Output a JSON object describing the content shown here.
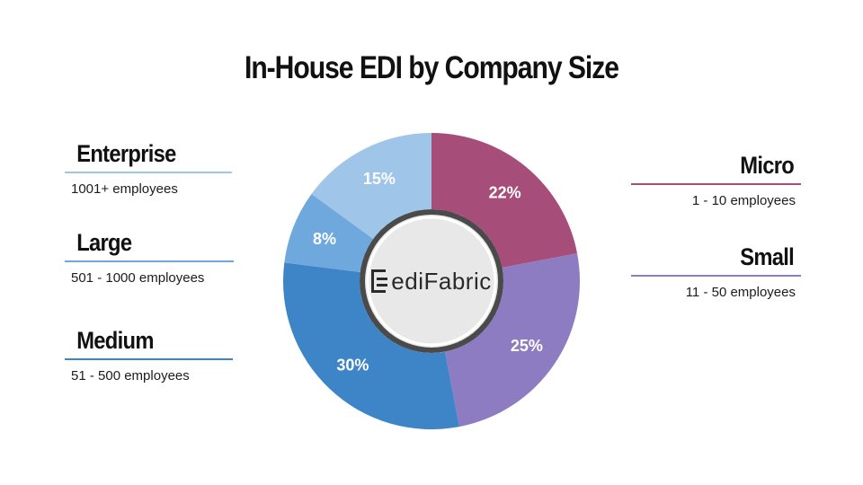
{
  "title": "In-House EDI by Company Size",
  "logo": {
    "text": "ediFabric"
  },
  "legend": {
    "enterprise": {
      "name": "Enterprise",
      "desc": "1001+ employees",
      "color": "#9fc5e8"
    },
    "large": {
      "name": "Large",
      "desc": "501 - 1000 employees",
      "color": "#6fa8dc"
    },
    "medium": {
      "name": "Medium",
      "desc": "51 - 500 employees",
      "color": "#3d85c6"
    },
    "micro": {
      "name": "Micro",
      "desc": "1 - 10 employees",
      "color": "#a64d79"
    },
    "small": {
      "name": "Small",
      "desc": "11 - 50 employees",
      "color": "#8e7cc3"
    }
  },
  "chart_data": {
    "type": "pie",
    "donut": true,
    "slices": [
      {
        "name": "Micro",
        "value": 22,
        "label": "22%",
        "color": "#a64d79"
      },
      {
        "name": "Small",
        "value": 25,
        "label": "25%",
        "color": "#8e7cc3"
      },
      {
        "name": "Medium",
        "value": 30,
        "label": "30%",
        "color": "#3d85c6"
      },
      {
        "name": "Large",
        "value": 8,
        "label": "8%",
        "color": "#6fa8dc"
      },
      {
        "name": "Enterprise",
        "value": 15,
        "label": "15%",
        "color": "#9fc5e8"
      }
    ],
    "start_angle": "12 o'clock",
    "direction": "clockwise",
    "legend": "left and right"
  }
}
